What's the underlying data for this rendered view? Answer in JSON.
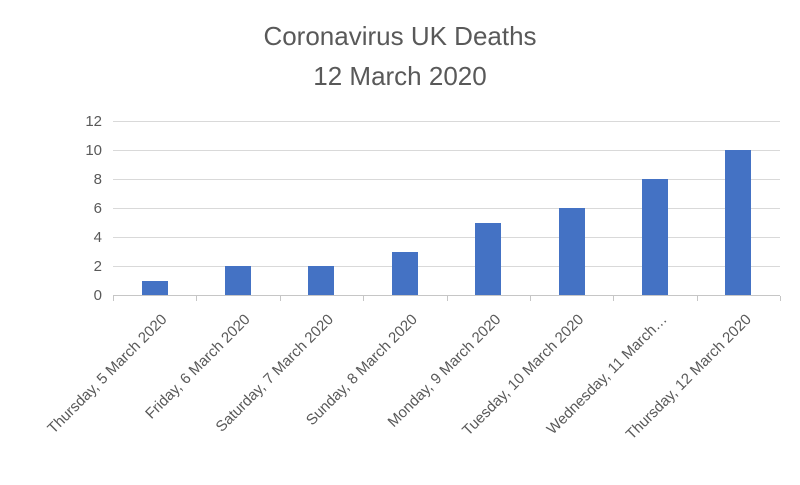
{
  "title": {
    "line1": "Coronavirus UK Deaths",
    "line2": "12 March 2020"
  },
  "chart_data": {
    "type": "bar",
    "title": "Coronavirus UK Deaths 12 March 2020",
    "categories": [
      "Thursday, 5 March 2020",
      "Friday, 6 March 2020",
      "Saturday, 7 March 2020",
      "Sunday, 8 March 2020",
      "Monday, 9 March 2020",
      "Tuesday, 10 March 2020",
      "Wednesday, 11 March…",
      "Thursday, 12 March 2020"
    ],
    "values": [
      1,
      2,
      2,
      3,
      5,
      6,
      8,
      10
    ],
    "xlabel": "",
    "ylabel": "",
    "ylim": [
      0,
      12
    ],
    "yticks": [
      0,
      2,
      4,
      6,
      8,
      10,
      12
    ],
    "grid": true,
    "legend": false,
    "bar_color": "#4472C4"
  },
  "colors": {
    "bar": "#4472C4",
    "gridline": "#D9D9D9",
    "axis_line": "#C6C6C6",
    "text": "#595959",
    "background": "#FFFFFF"
  }
}
